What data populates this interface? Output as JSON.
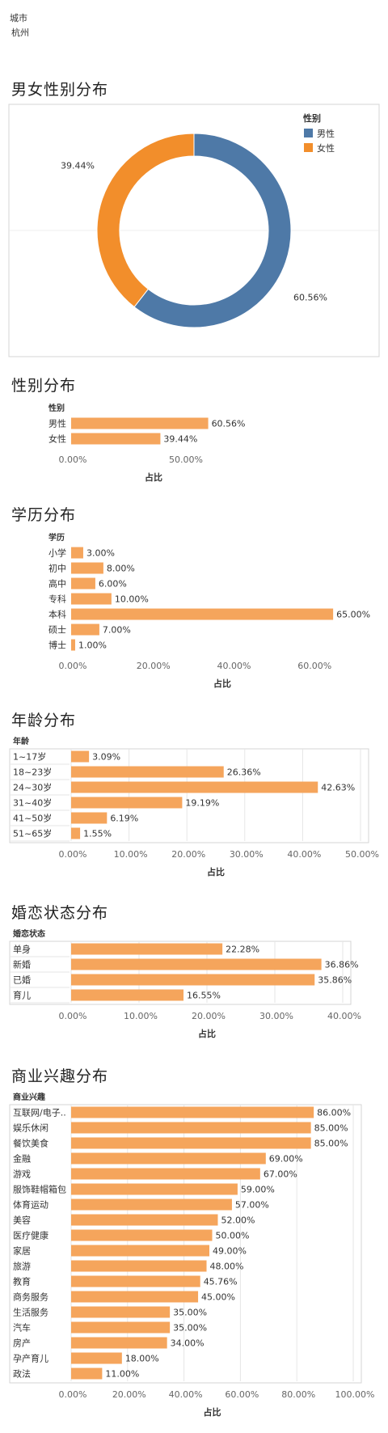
{
  "filter": {
    "label": "城市",
    "value": "杭州"
  },
  "colors": {
    "male": "#4e79a7",
    "female": "#f28e2b",
    "bar": "#f5a55c",
    "grid": "#e6e6e6",
    "border": "#d4d4d4"
  },
  "charts": {
    "gender_donut": {
      "title": "男女性别分布",
      "chart_data": {
        "type": "pie",
        "donut": true,
        "legend_title": "性别",
        "legend_placement": "top-right",
        "slices": [
          {
            "name": "男性",
            "value": 60.56,
            "label": "60.56%"
          },
          {
            "name": "女性",
            "value": 39.44,
            "label": "39.44%"
          }
        ]
      }
    },
    "gender_bar": {
      "title": "性别分布",
      "chart_data": {
        "type": "bar",
        "orientation": "horizontal",
        "category_header": "性别",
        "xlabel": "占比",
        "categories": [
          "男性",
          "女性"
        ],
        "values": [
          60.56,
          39.44
        ],
        "labels": [
          "60.56%",
          "39.44%"
        ],
        "xlim": [
          0,
          80
        ],
        "ticks": [
          0,
          50
        ],
        "tick_labels": [
          "0.00%",
          "50.00%"
        ]
      }
    },
    "education_bar": {
      "title": "学历分布",
      "chart_data": {
        "type": "bar",
        "orientation": "horizontal",
        "category_header": "学历",
        "xlabel": "占比",
        "categories": [
          "小学",
          "初中",
          "高中",
          "专科",
          "本科",
          "硕士",
          "博士"
        ],
        "values": [
          3,
          8,
          6,
          10,
          65,
          7,
          1
        ],
        "labels": [
          "3.00%",
          "8.00%",
          "6.00%",
          "10.00%",
          "65.00%",
          "7.00%",
          "1.00%"
        ],
        "xlim": [
          0,
          75
        ],
        "ticks": [
          0,
          20,
          40,
          60
        ],
        "tick_labels": [
          "0.00%",
          "20.00%",
          "40.00%",
          "60.00%"
        ]
      }
    },
    "age_bar": {
      "title": "年龄分布",
      "chart_data": {
        "type": "bar",
        "orientation": "horizontal",
        "category_header": "年龄",
        "xlabel": "占比",
        "categories": [
          "1~17岁",
          "18~23岁",
          "24~30岁",
          "31~40岁",
          "41~50岁",
          "51~65岁"
        ],
        "values": [
          3.09,
          26.36,
          42.63,
          19.19,
          6.19,
          1.55
        ],
        "labels": [
          "3.09%",
          "26.36%",
          "42.63%",
          "19.19%",
          "6.19%",
          "1.55%"
        ],
        "xlim": [
          0,
          50
        ],
        "ticks": [
          0,
          10,
          20,
          30,
          40,
          50
        ],
        "tick_labels": [
          "0.00%",
          "10.00%",
          "20.00%",
          "30.00%",
          "40.00%",
          "50.00%"
        ]
      }
    },
    "marital_bar": {
      "title": "婚恋状态分布",
      "chart_data": {
        "type": "bar",
        "orientation": "horizontal",
        "category_header": "婚恋状态",
        "xlabel": "占比",
        "categories": [
          "单身",
          "新婚",
          "已婚",
          "育儿"
        ],
        "values": [
          22.28,
          36.86,
          35.86,
          16.55
        ],
        "labels": [
          "22.28%",
          "36.86%",
          "35.86%",
          "16.55%"
        ],
        "xlim": [
          0,
          40
        ],
        "ticks": [
          0,
          10,
          20,
          30,
          40
        ],
        "tick_labels": [
          "0.00%",
          "10.00%",
          "20.00%",
          "30.00%",
          "40.00%"
        ]
      }
    },
    "interest_bar": {
      "title": "商业兴趣分布",
      "chart_data": {
        "type": "bar",
        "orientation": "horizontal",
        "category_header": "商业兴趣",
        "xlabel": "占比",
        "categories": [
          "互联网/电子..",
          "娱乐休闲",
          "餐饮美食",
          "金融",
          "游戏",
          "服饰鞋帽箱包",
          "体育运动",
          "美容",
          "医疗健康",
          "家居",
          "旅游",
          "教育",
          "商务服务",
          "生活服务",
          "汽车",
          "房产",
          "孕产育儿",
          "政法"
        ],
        "values": [
          86,
          85,
          85,
          69,
          67,
          59,
          57,
          52,
          50,
          49,
          48,
          45.76,
          45,
          35,
          35,
          34,
          18,
          11
        ],
        "labels": [
          "86.00%",
          "85.00%",
          "85.00%",
          "69.00%",
          "67.00%",
          "59.00%",
          "57.00%",
          "52.00%",
          "50.00%",
          "49.00%",
          "48.00%",
          "45.76%",
          "45.00%",
          "35.00%",
          "35.00%",
          "34.00%",
          "18.00%",
          "11.00%"
        ],
        "xlim": [
          0,
          100
        ],
        "ticks": [
          0,
          20,
          40,
          60,
          80,
          100
        ],
        "tick_labels": [
          "0.00%",
          "20.00%",
          "40.00%",
          "60.00%",
          "80.00%",
          "100.00%"
        ]
      }
    }
  }
}
